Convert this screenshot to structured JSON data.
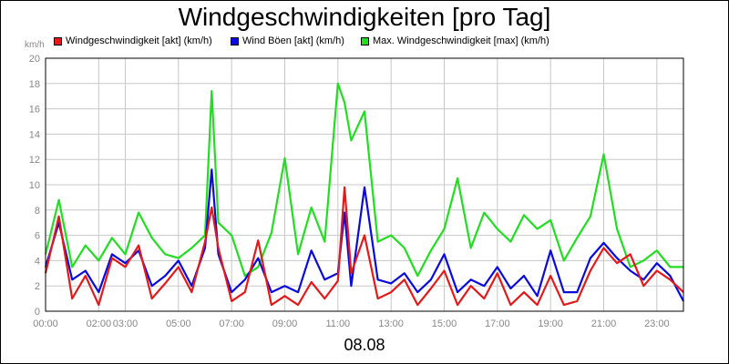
{
  "chart_data": {
    "type": "line",
    "title": "Windgeschwindigkeiten [pro Tag]",
    "ylabel": "km/h",
    "xlabel": "08.08",
    "ylim": [
      0,
      20
    ],
    "yticks": [
      0,
      2,
      4,
      6,
      8,
      10,
      12,
      14,
      16,
      18,
      20
    ],
    "xlim": [
      0,
      24
    ],
    "xticks": [
      {
        "t": 0,
        "label": "00:00"
      },
      {
        "t": 2,
        "label": "02:00"
      },
      {
        "t": 3,
        "label": "03:00"
      },
      {
        "t": 5,
        "label": "05:00"
      },
      {
        "t": 7,
        "label": "07:00"
      },
      {
        "t": 9,
        "label": "09:00"
      },
      {
        "t": 11,
        "label": "11:00"
      },
      {
        "t": 13,
        "label": "13:00"
      },
      {
        "t": 15,
        "label": "15:00"
      },
      {
        "t": 17,
        "label": "17:00"
      },
      {
        "t": 19,
        "label": "19:00"
      },
      {
        "t": 21,
        "label": "21:00"
      },
      {
        "t": 23,
        "label": "23:00"
      }
    ],
    "grid": true,
    "legend_position": "top",
    "x_hours": [
      0,
      0.5,
      1,
      1.5,
      2,
      2.5,
      3,
      3.5,
      4,
      4.5,
      5,
      5.5,
      6,
      6.25,
      6.5,
      7,
      7.5,
      8,
      8.5,
      9,
      9.5,
      10,
      10.5,
      11,
      11.25,
      11.5,
      12,
      12.5,
      13,
      13.5,
      14,
      14.5,
      15,
      15.5,
      16,
      16.5,
      17,
      17.5,
      18,
      18.5,
      19,
      19.5,
      20,
      20.5,
      21,
      21.5,
      22,
      22.5,
      23,
      23.5,
      24
    ],
    "series": [
      {
        "name": "Windgeschwindigkeit [akt] (km/h)",
        "color": "#e31a1c",
        "values": [
          3.0,
          7.5,
          1.0,
          2.8,
          0.5,
          4.2,
          3.5,
          5.2,
          1.0,
          2.2,
          3.5,
          1.5,
          5.5,
          8.2,
          5.0,
          0.8,
          1.5,
          5.6,
          0.5,
          1.2,
          0.5,
          2.3,
          1.0,
          2.4,
          9.8,
          3.0,
          6.0,
          1.0,
          1.5,
          2.5,
          0.5,
          1.8,
          3.2,
          0.5,
          2.0,
          1.0,
          3.0,
          0.5,
          1.5,
          0.5,
          2.8,
          0.5,
          0.8,
          3.2,
          5.0,
          3.8,
          4.5,
          2.0,
          3.2,
          2.5,
          1.5
        ]
      },
      {
        "name": "Wind Böen [akt] (km/h)",
        "color": "#0a0adc",
        "values": [
          3.5,
          7.0,
          2.5,
          3.2,
          1.5,
          4.5,
          3.8,
          4.8,
          2.0,
          2.8,
          4.0,
          2.0,
          5.0,
          11.2,
          4.5,
          1.5,
          2.5,
          4.2,
          1.5,
          2.0,
          1.5,
          4.8,
          2.5,
          3.0,
          7.8,
          2.0,
          9.8,
          2.5,
          2.2,
          3.0,
          1.5,
          2.5,
          4.5,
          1.5,
          2.5,
          2.0,
          3.5,
          1.8,
          2.8,
          1.2,
          4.8,
          1.5,
          1.5,
          4.2,
          5.4,
          4.2,
          3.2,
          2.5,
          3.8,
          2.8,
          0.8
        ]
      },
      {
        "name": "Max. Windgeschwindigkeit [max] (km/h)",
        "color": "#22dd22",
        "values": [
          4.5,
          8.8,
          3.5,
          5.2,
          4.0,
          5.8,
          4.5,
          7.8,
          5.8,
          4.5,
          4.2,
          5.0,
          6.0,
          17.4,
          7.0,
          6.0,
          2.8,
          3.5,
          6.2,
          12.1,
          4.5,
          8.2,
          5.5,
          18.0,
          16.5,
          13.5,
          15.8,
          5.5,
          6.0,
          5.0,
          2.8,
          4.8,
          6.5,
          10.5,
          5.0,
          7.8,
          6.5,
          5.5,
          7.6,
          6.5,
          7.2,
          4.0,
          5.8,
          7.5,
          12.4,
          6.5,
          3.5,
          4.0,
          4.8,
          3.5,
          3.5
        ]
      }
    ]
  }
}
